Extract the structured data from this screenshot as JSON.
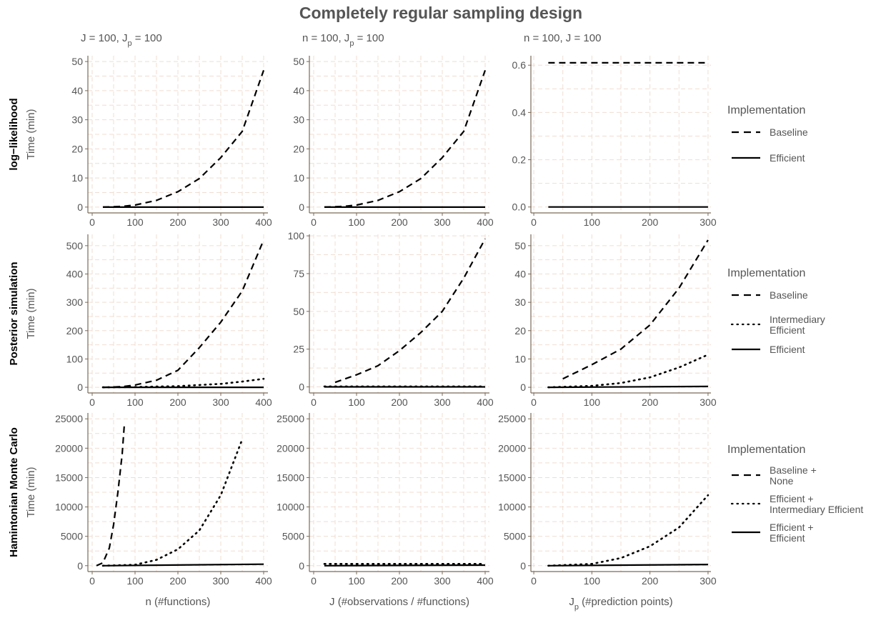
{
  "title": "Completely regular sampling design",
  "colors": {
    "axis": "#7a6a58",
    "grid": "#f0ddd2",
    "text": "#555555",
    "line": "#000000"
  },
  "column_titles": [
    {
      "main": "J = 100, J",
      "sub": "p",
      "rest": " = 100"
    },
    {
      "main": "n = 100, J",
      "sub": "p",
      "rest": " = 100"
    },
    {
      "main": "n = 100, J = 100",
      "sub": "",
      "rest": ""
    }
  ],
  "row_titles": [
    "log−likelihood",
    "Posterior simulation",
    "Hamintonian Monte Carlo"
  ],
  "ylabel": "Time (min)",
  "xlabels": [
    {
      "main": "n (#functions)",
      "sub": "",
      "rest": ""
    },
    {
      "main": "J (#observations / #functions)",
      "sub": "",
      "rest": ""
    },
    {
      "main": "J",
      "sub": "p",
      "rest": " (#prediction points)"
    }
  ],
  "legends": [
    {
      "title": "Implementation",
      "items": [
        {
          "label": [
            "Baseline"
          ],
          "style": "dashed"
        },
        {
          "label": [
            "Efficient"
          ],
          "style": "solid"
        }
      ]
    },
    {
      "title": "Implementation",
      "items": [
        {
          "label": [
            "Baseline"
          ],
          "style": "dashed"
        },
        {
          "label": [
            "Intermediary",
            "Efficient"
          ],
          "style": "dotted"
        },
        {
          "label": [
            "Efficient"
          ],
          "style": "solid"
        }
      ]
    },
    {
      "title": "Implementation",
      "items": [
        {
          "label": [
            "Baseline +",
            "None"
          ],
          "style": "dashed"
        },
        {
          "label": [
            "Efficient +",
            "Intermediary Efficient"
          ],
          "style": "dotted"
        },
        {
          "label": [
            "Efficient +",
            "Efficient"
          ],
          "style": "solid"
        }
      ]
    }
  ],
  "chart_data": [
    {
      "type": "line",
      "row": 0,
      "col": 0,
      "xlim": [
        -10,
        410
      ],
      "ylim": [
        -2,
        52
      ],
      "xticks": [
        0,
        100,
        200,
        300,
        400
      ],
      "yticks": [
        0,
        10,
        20,
        30,
        40,
        50
      ],
      "ytick_labels": [
        "0",
        "10",
        "20",
        "30",
        "40",
        "50"
      ],
      "series": [
        {
          "name": "Baseline",
          "style": "dashed",
          "x": [
            25,
            50,
            75,
            100,
            150,
            200,
            250,
            300,
            350,
            400
          ],
          "y": [
            0,
            0.1,
            0.3,
            0.7,
            2.3,
            5.3,
            9.8,
            17,
            26,
            47
          ]
        },
        {
          "name": "Efficient",
          "style": "solid",
          "x": [
            25,
            400
          ],
          "y": [
            0,
            0
          ]
        }
      ]
    },
    {
      "type": "line",
      "row": 0,
      "col": 1,
      "xlim": [
        -10,
        410
      ],
      "ylim": [
        -2,
        52
      ],
      "xticks": [
        0,
        100,
        200,
        300,
        400
      ],
      "yticks": [
        0,
        10,
        20,
        30,
        40,
        50
      ],
      "ytick_labels": [
        "0",
        "10",
        "20",
        "30",
        "40",
        "50"
      ],
      "series": [
        {
          "name": "Baseline",
          "style": "dashed",
          "x": [
            25,
            50,
            75,
            100,
            150,
            200,
            250,
            300,
            350,
            400
          ],
          "y": [
            0,
            0.1,
            0.3,
            0.7,
            2.3,
            5.3,
            9.8,
            17,
            26,
            47
          ]
        },
        {
          "name": "Efficient",
          "style": "solid",
          "x": [
            25,
            400
          ],
          "y": [
            0,
            0
          ]
        }
      ]
    },
    {
      "type": "line",
      "row": 0,
      "col": 2,
      "xlim": [
        -5,
        305
      ],
      "ylim": [
        -0.025,
        0.64
      ],
      "xticks": [
        0,
        100,
        200,
        300
      ],
      "yticks": [
        0,
        0.2,
        0.4,
        0.6
      ],
      "ytick_labels": [
        "0.0",
        "0.2",
        "0.4",
        "0.6"
      ],
      "series": [
        {
          "name": "Baseline",
          "style": "dashed",
          "x": [
            25,
            300
          ],
          "y": [
            0.61,
            0.61
          ]
        },
        {
          "name": "Efficient",
          "style": "solid",
          "x": [
            25,
            300
          ],
          "y": [
            0,
            0
          ]
        }
      ]
    },
    {
      "type": "line",
      "row": 1,
      "col": 0,
      "xlim": [
        -10,
        410
      ],
      "ylim": [
        -20,
        540
      ],
      "xticks": [
        0,
        100,
        200,
        300,
        400
      ],
      "yticks": [
        0,
        100,
        200,
        300,
        400,
        500
      ],
      "ytick_labels": [
        "0",
        "100",
        "200",
        "300",
        "400",
        "500"
      ],
      "series": [
        {
          "name": "Baseline",
          "style": "dashed",
          "x": [
            25,
            50,
            75,
            100,
            150,
            200,
            250,
            300,
            350,
            400
          ],
          "y": [
            0,
            1,
            3,
            8,
            25,
            60,
            140,
            230,
            340,
            520
          ]
        },
        {
          "name": "Intermediary Efficient",
          "style": "dotted",
          "x": [
            25,
            100,
            200,
            300,
            350,
            400
          ],
          "y": [
            0,
            1,
            4,
            12,
            20,
            30
          ]
        },
        {
          "name": "Efficient",
          "style": "solid",
          "x": [
            25,
            400
          ],
          "y": [
            0,
            0
          ]
        }
      ]
    },
    {
      "type": "line",
      "row": 1,
      "col": 1,
      "xlim": [
        -10,
        410
      ],
      "ylim": [
        -4,
        101
      ],
      "xticks": [
        0,
        100,
        200,
        300,
        400
      ],
      "yticks": [
        0,
        25,
        50,
        75,
        100
      ],
      "ytick_labels": [
        "0",
        "25",
        "50",
        "75",
        "100"
      ],
      "series": [
        {
          "name": "Baseline",
          "style": "dashed",
          "x": [
            50,
            100,
            150,
            200,
            250,
            300,
            350,
            400
          ],
          "y": [
            3,
            8,
            14,
            24,
            36,
            50,
            72,
            98
          ]
        },
        {
          "name": "Intermediary Efficient",
          "style": "dotted",
          "x": [
            25,
            400
          ],
          "y": [
            0.3,
            0.3
          ]
        },
        {
          "name": "Efficient",
          "style": "solid",
          "x": [
            25,
            400
          ],
          "y": [
            0,
            0
          ]
        }
      ]
    },
    {
      "type": "line",
      "row": 1,
      "col": 2,
      "xlim": [
        -5,
        305
      ],
      "ylim": [
        -2,
        54
      ],
      "xticks": [
        0,
        100,
        200,
        300
      ],
      "yticks": [
        0,
        10,
        20,
        30,
        40,
        50
      ],
      "ytick_labels": [
        "0",
        "10",
        "20",
        "30",
        "40",
        "50"
      ],
      "series": [
        {
          "name": "Baseline",
          "style": "dashed",
          "x": [
            50,
            100,
            150,
            200,
            250,
            300
          ],
          "y": [
            3,
            8,
            13.5,
            22,
            35,
            52
          ]
        },
        {
          "name": "Intermediary Efficient",
          "style": "dotted",
          "x": [
            25,
            100,
            150,
            200,
            250,
            300
          ],
          "y": [
            0,
            0.5,
            1.5,
            3.5,
            7,
            11.5
          ]
        },
        {
          "name": "Efficient",
          "style": "solid",
          "x": [
            25,
            300
          ],
          "y": [
            0,
            0.3
          ]
        }
      ]
    },
    {
      "type": "line",
      "row": 2,
      "col": 0,
      "xlim": [
        -10,
        410
      ],
      "ylim": [
        -1000,
        26000
      ],
      "xticks": [
        0,
        100,
        200,
        300,
        400
      ],
      "yticks": [
        0,
        5000,
        10000,
        15000,
        20000,
        25000
      ],
      "ytick_labels": [
        "0",
        "5000",
        "10000",
        "15000",
        "20000",
        "25000"
      ],
      "series": [
        {
          "name": "Baseline + None",
          "style": "dashed",
          "x": [
            10,
            25,
            40,
            50,
            60,
            70,
            75
          ],
          "y": [
            0,
            500,
            3000,
            7000,
            12500,
            19000,
            24000
          ]
        },
        {
          "name": "Efficient + Intermediary Efficient",
          "style": "dotted",
          "x": [
            25,
            100,
            150,
            200,
            250,
            300,
            350
          ],
          "y": [
            0,
            150,
            1000,
            2800,
            6000,
            12000,
            21500
          ]
        },
        {
          "name": "Efficient + Efficient",
          "style": "solid",
          "x": [
            25,
            400
          ],
          "y": [
            0,
            250
          ]
        }
      ]
    },
    {
      "type": "line",
      "row": 2,
      "col": 1,
      "xlim": [
        -10,
        410
      ],
      "ylim": [
        -1000,
        26000
      ],
      "xticks": [
        0,
        100,
        200,
        300,
        400
      ],
      "yticks": [
        0,
        5000,
        10000,
        15000,
        20000,
        25000
      ],
      "ytick_labels": [
        "0",
        "5000",
        "10000",
        "15000",
        "20000",
        "25000"
      ],
      "series": [
        {
          "name": "Efficient + Intermediary Efficient",
          "style": "dotted",
          "x": [
            25,
            400
          ],
          "y": [
            300,
            300
          ]
        },
        {
          "name": "Efficient + Efficient",
          "style": "solid",
          "x": [
            25,
            400
          ],
          "y": [
            0,
            100
          ]
        }
      ]
    },
    {
      "type": "line",
      "row": 2,
      "col": 2,
      "xlim": [
        -5,
        305
      ],
      "ylim": [
        -1000,
        26000
      ],
      "xticks": [
        0,
        100,
        200,
        300
      ],
      "yticks": [
        0,
        5000,
        10000,
        15000,
        20000,
        25000
      ],
      "ytick_labels": [
        "0",
        "5000",
        "10000",
        "15000",
        "20000",
        "25000"
      ],
      "series": [
        {
          "name": "Efficient + Intermediary Efficient",
          "style": "dotted",
          "x": [
            25,
            100,
            150,
            200,
            250,
            300
          ],
          "y": [
            0,
            300,
            1300,
            3300,
            6500,
            12000
          ]
        },
        {
          "name": "Efficient + Efficient",
          "style": "solid",
          "x": [
            25,
            300
          ],
          "y": [
            0,
            200
          ]
        }
      ]
    }
  ]
}
